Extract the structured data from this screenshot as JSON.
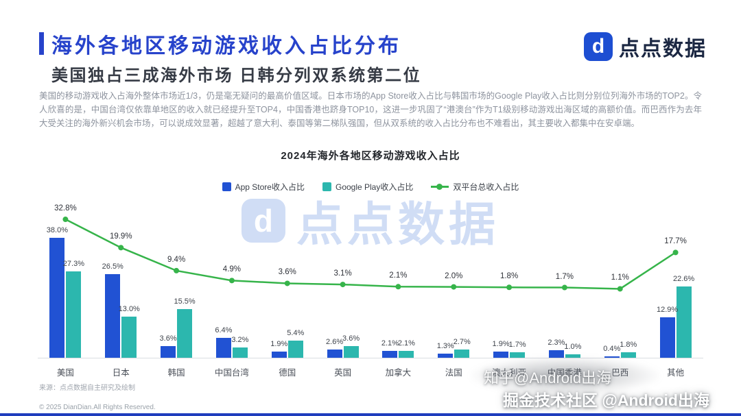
{
  "header": {
    "title": "海外各地区移动游戏收入占比分布",
    "subtitle": "美国独占三成海外市场 日韩分列双系统第二位",
    "brand": "点点数据",
    "brand_glyph": "d",
    "accent_color": "#2743cb"
  },
  "body_paragraph": "美国的移动游戏收入占海外整体市场近1/3，仍是毫无疑问的最高价值区域。日本市场的App Store收入占比与韩国市场的Google Play收入占比则分别位列海外市场的TOP2。令人欣喜的是，中国台湾仅依靠单地区的收入就已经提升至TOP4，中国香港也跻身TOP10，这进一步巩固了“港澳台”作为T1级别移动游戏出海区域的高额价值。而巴西作为去年大受关注的海外新兴机会市场，可以说成效显著，超越了意大利、泰国等第二梯队强国，但从双系统的收入占比分布也不难看出，其主要收入都集中在安卓端。",
  "chart_data": {
    "type": "bar",
    "title": "2024年海外各地区移动游戏收入占比",
    "categories": [
      "美国",
      "日本",
      "韩国",
      "中国台湾",
      "德国",
      "英国",
      "加拿大",
      "法国",
      "澳大利亚",
      "中国香港",
      "巴西",
      "其他"
    ],
    "series": [
      {
        "name": "App Store收入占比",
        "type": "bar",
        "color": "#2152d3",
        "values": [
          38.0,
          26.5,
          3.6,
          6.4,
          1.9,
          2.6,
          2.1,
          1.3,
          1.9,
          2.3,
          0.4,
          12.9
        ]
      },
      {
        "name": "Google Play收入占比",
        "type": "bar",
        "color": "#2cb7ae",
        "values": [
          27.3,
          13.0,
          15.5,
          3.2,
          5.4,
          3.6,
          2.1,
          2.7,
          1.7,
          1.0,
          1.8,
          22.6
        ]
      },
      {
        "name": "双平台总收入占比",
        "type": "line",
        "color": "#36b44a",
        "values": [
          32.8,
          19.9,
          9.4,
          4.9,
          3.6,
          3.1,
          2.1,
          2.0,
          1.8,
          1.7,
          1.1,
          17.7
        ]
      }
    ],
    "value_suffix": "%",
    "ylim": [
      0,
      40
    ],
    "grid": false,
    "legend_position": "top"
  },
  "watermarks": {
    "center_logo_text": "点点数据",
    "bottom_1": "知乎@Android出海",
    "bottom_2": "掘金技术社区 @Android出海"
  },
  "footer": {
    "source": "来源：点点数据自主研究及绘制",
    "copyright": "© 2025 DianDian.All Rights Reserved."
  }
}
